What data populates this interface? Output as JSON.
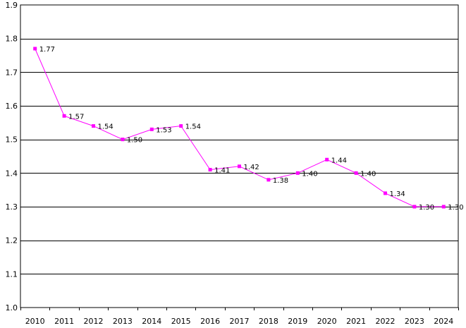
{
  "chart_data": {
    "type": "line",
    "categories": [
      "2010",
      "2011",
      "2012",
      "2013",
      "2014",
      "2015",
      "2016",
      "2017",
      "2018",
      "2019",
      "2020",
      "2021",
      "2022",
      "2023",
      "2024"
    ],
    "series": [
      {
        "values": [
          1.77,
          1.57,
          1.54,
          1.5,
          1.53,
          1.54,
          1.41,
          1.42,
          1.38,
          1.4,
          1.44,
          1.4,
          1.34,
          1.3,
          1.3
        ],
        "labels": [
          "1.77",
          "1.57",
          "1.54",
          "1.50",
          "1.53",
          "1.54",
          "1.41",
          "1.42",
          "1.38",
          "1.40",
          "1.44",
          "1.40",
          "1.34",
          "1.30",
          "1.30"
        ],
        "color": "#ff00ff"
      }
    ],
    "ylim": [
      1.0,
      1.9
    ],
    "yticks": [
      "1.0",
      "1.1",
      "1.2",
      "1.3",
      "1.4",
      "1.5",
      "1.6",
      "1.7",
      "1.8",
      "1.9"
    ],
    "title": "",
    "xlabel": "",
    "ylabel": "",
    "grid": true,
    "gridColor": "#000000"
  }
}
